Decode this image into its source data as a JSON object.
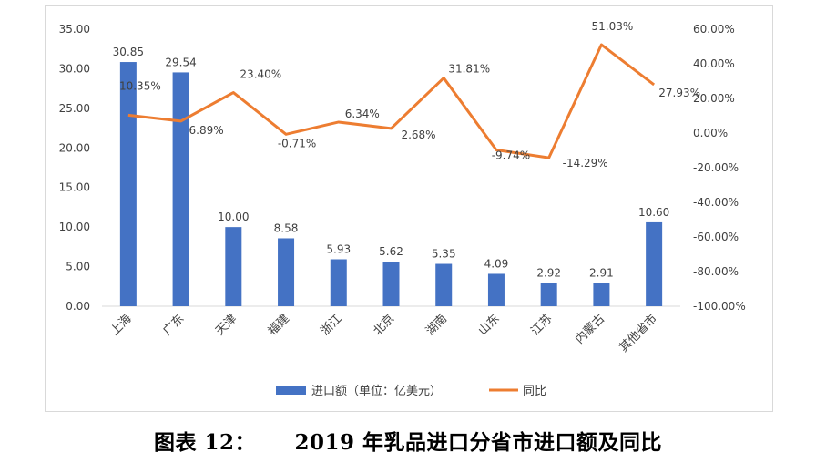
{
  "chart_data": {
    "type": "bar+line",
    "categories": [
      "上海",
      "广东",
      "天津",
      "福建",
      "浙江",
      "北京",
      "湖南",
      "山东",
      "江苏",
      "内蒙古",
      "其他省市"
    ],
    "series": [
      {
        "name": "进口额（单位：亿美元）",
        "type": "bar",
        "axis": "left",
        "color": "#4472C4",
        "values": [
          30.85,
          29.54,
          10.0,
          8.58,
          5.93,
          5.62,
          5.35,
          4.09,
          2.92,
          2.91,
          10.6
        ],
        "labels": [
          "30.85",
          "29.54",
          "10.00",
          "8.58",
          "5.93",
          "5.62",
          "5.35",
          "4.09",
          "2.92",
          "2.91",
          "10.60"
        ]
      },
      {
        "name": "同比",
        "type": "line",
        "axis": "right",
        "color": "#ED7D31",
        "values": [
          10.35,
          6.89,
          23.4,
          -0.71,
          6.34,
          2.68,
          31.81,
          -9.74,
          -14.29,
          51.03,
          27.93
        ],
        "labels": [
          "10.35%",
          "6.89%",
          "23.40%",
          "-0.71%",
          "6.34%",
          "2.68%",
          "31.81%",
          "-9.74%",
          "-14.29%",
          "51.03%",
          "27.93%"
        ]
      }
    ],
    "left_axis": {
      "ylim": [
        0,
        35
      ],
      "ticks": [
        "0.00",
        "5.00",
        "10.00",
        "15.00",
        "20.00",
        "25.00",
        "30.00",
        "35.00"
      ]
    },
    "right_axis": {
      "ylim": [
        -100,
        60
      ],
      "ticks": [
        "-100.00%",
        "-80.00%",
        "-60.00%",
        "-40.00%",
        "-20.00%",
        "0.00%",
        "20.00%",
        "40.00%",
        "60.00%"
      ]
    },
    "grid": false,
    "legend_position": "bottom",
    "caption": "图表 12：     2019 年乳品进口分省市进口额及同比"
  }
}
